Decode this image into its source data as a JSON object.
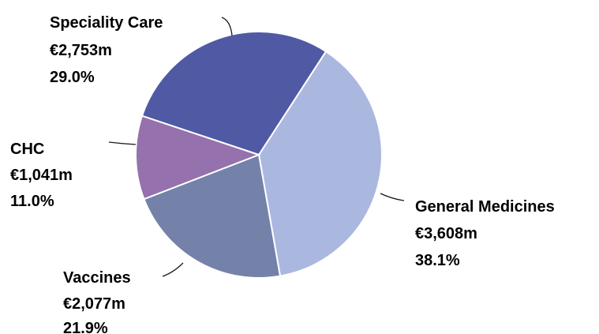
{
  "chart_data": {
    "type": "pie",
    "title": "",
    "slices": [
      {
        "name": "General Medicines",
        "value": 3608,
        "value_label": "€3,608m",
        "percent_label": "38.1%",
        "color": "#aab8e0"
      },
      {
        "name": "Vaccines",
        "value": 2077,
        "value_label": "€2,077m",
        "percent_label": "21.9%",
        "color": "#7482aa"
      },
      {
        "name": "CHC",
        "value": 1041,
        "value_label": "€1,041m",
        "percent_label": "11.0%",
        "color": "#9571ad"
      },
      {
        "name": "Speciality Care",
        "value": 2753,
        "value_label": "€2,753m",
        "percent_label": "29.0%",
        "color": "#5059a3"
      }
    ],
    "start_angle_deg": 33,
    "direction": "clockwise"
  }
}
